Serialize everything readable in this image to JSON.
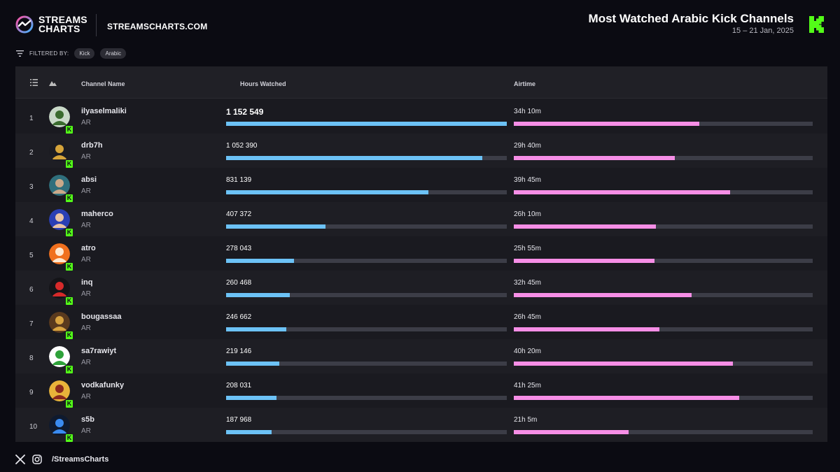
{
  "header": {
    "brand_line1": "STREAMS",
    "brand_line2": "CHARTS",
    "site": "STREAMSCHARTS.COM",
    "title": "Most Watched Arabic Kick Channels",
    "date_range": "15 – 21 Jan, 2025"
  },
  "filter": {
    "label": "FILTERED BY:",
    "chips": [
      "Kick",
      "Arabic"
    ]
  },
  "table": {
    "col_channel": "Channel Name",
    "col_hours": "Hours Watched",
    "col_airtime": "Airtime"
  },
  "colors": {
    "hours_bar": "#6cc2f6",
    "airtime_bar": "#f68ee6",
    "kick_green": "#53fc18",
    "track": "#3c3d47"
  },
  "chart_data": {
    "type": "bar",
    "title": "Most Watched Arabic Kick Channels",
    "subtitle": "15 – 21 Jan, 2025",
    "categories": [
      "ilyaselmaliki",
      "drb7h",
      "absi",
      "maherco",
      "atro",
      "inq",
      "bougassaa",
      "sa7rawiyt",
      "vodkafunky",
      "s5b"
    ],
    "series": [
      {
        "name": "Hours Watched",
        "values": [
          1152549,
          1052390,
          831139,
          407372,
          278043,
          260468,
          246662,
          219146,
          208031,
          187968
        ],
        "labels": [
          "1 152 549",
          "1 052 390",
          "831 139",
          "407 372",
          "278 043",
          "260 468",
          "246 662",
          "219 146",
          "208 031",
          "187 968"
        ],
        "max": 1152549
      },
      {
        "name": "Airtime",
        "values_minutes": [
          2050,
          1780,
          2385,
          1570,
          1555,
          1965,
          1605,
          2420,
          2485,
          1265
        ],
        "labels": [
          "34h 10m",
          "29h 40m",
          "39h 45m",
          "26h 10m",
          "25h 55m",
          "32h 45m",
          "26h 45m",
          "40h 20m",
          "41h 25m",
          "21h 5m"
        ],
        "max_minutes": 3300
      }
    ],
    "rows": [
      {
        "rank": "1",
        "name": "ilyaselmaliki",
        "lang": "AR",
        "avatar_bg": "#c9d9c8",
        "avatar_fg": "#3a6b2e"
      },
      {
        "rank": "2",
        "name": "drb7h",
        "lang": "AR",
        "avatar_bg": "#1c1c22",
        "avatar_fg": "#d6a43a"
      },
      {
        "rank": "3",
        "name": "absi",
        "lang": "AR",
        "avatar_bg": "#2f6f7c",
        "avatar_fg": "#caa98a"
      },
      {
        "rank": "4",
        "name": "maherco",
        "lang": "AR",
        "avatar_bg": "#2a3fb5",
        "avatar_fg": "#e8c3a6"
      },
      {
        "rank": "5",
        "name": "atro",
        "lang": "AR",
        "avatar_bg": "#f0701e",
        "avatar_fg": "#ffe9d2"
      },
      {
        "rank": "6",
        "name": "inq",
        "lang": "AR",
        "avatar_bg": "#141418",
        "avatar_fg": "#d62a2a"
      },
      {
        "rank": "7",
        "name": "bougassaa",
        "lang": "AR",
        "avatar_bg": "#5a3a1e",
        "avatar_fg": "#d9a441"
      },
      {
        "rank": "8",
        "name": "sa7rawiyt",
        "lang": "AR",
        "avatar_bg": "#ffffff",
        "avatar_fg": "#2fa23a"
      },
      {
        "rank": "9",
        "name": "vodkafunky",
        "lang": "AR",
        "avatar_bg": "#e8b33a",
        "avatar_fg": "#8b2a1e"
      },
      {
        "rank": "10",
        "name": "s5b",
        "lang": "AR",
        "avatar_bg": "#0f1a2e",
        "avatar_fg": "#3a8bf0"
      }
    ]
  },
  "footer": {
    "handle": "/StreamsCharts",
    "icons": [
      "x-icon",
      "instagram-icon"
    ]
  }
}
